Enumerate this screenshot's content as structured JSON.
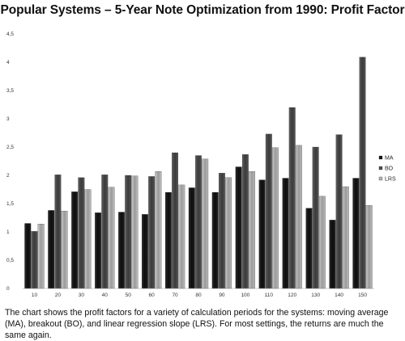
{
  "page": {
    "title": "Popular Systems – 5-Year Note Optimization from 1990: Profit Factor",
    "caption": "The chart shows the profit factors for a variety of calculation periods for the systems: moving average (MA), breakout (BO), and linear regression slope (LRS). For most settings, the returns are much the same again."
  },
  "chart_data": {
    "type": "bar",
    "title": "Popular Systems – 5-Year Note Optimization from 1990: Profit Factor",
    "xlabel": "",
    "ylabel": "",
    "categories": [
      "10",
      "20",
      "30",
      "40",
      "50",
      "60",
      "70",
      "80",
      "90",
      "100",
      "110",
      "120",
      "130",
      "140",
      "150"
    ],
    "yticks": [
      "0",
      "0,5",
      "1",
      "1,5",
      "2",
      "2,5",
      "3",
      "3,5",
      "4",
      "4,5"
    ],
    "ylim": [
      0,
      4.5
    ],
    "grid": false,
    "legend_position": "right",
    "series": [
      {
        "name": "MA",
        "color": "#111111",
        "values": [
          1.15,
          1.38,
          1.71,
          1.34,
          1.35,
          1.31,
          1.7,
          1.78,
          1.7,
          2.15,
          1.92,
          1.95,
          1.42,
          1.21,
          1.95
        ]
      },
      {
        "name": "BO",
        "color": "#4a4a4a",
        "values": [
          1.01,
          2.01,
          1.96,
          2.01,
          2.0,
          1.98,
          2.4,
          2.35,
          2.04,
          2.37,
          2.73,
          3.2,
          2.5,
          2.72,
          4.09
        ]
      },
      {
        "name": "LRS",
        "color": "#b0b0b0",
        "values": [
          1.14,
          1.37,
          1.75,
          1.79,
          1.99,
          2.07,
          1.83,
          2.29,
          1.96,
          2.07,
          2.49,
          2.53,
          1.63,
          1.8,
          1.47
        ]
      }
    ]
  }
}
